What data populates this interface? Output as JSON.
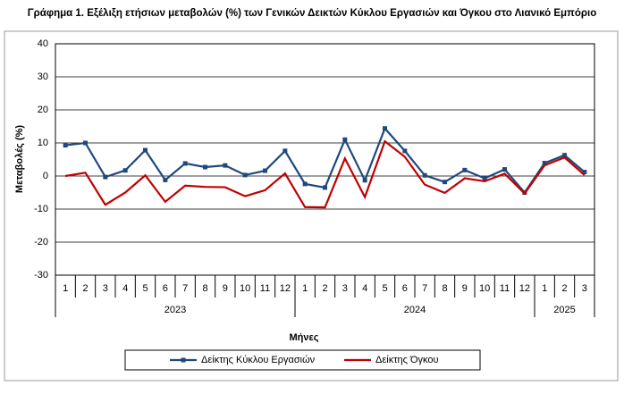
{
  "chart_data": {
    "type": "line",
    "title": "Γράφημα 1. Εξέλιξη ετήσιων μεταβολών (%) των Γενικών Δεικτών Κύκλου Εργασιών και Όγκου στο Λιανικό Εμπόριο",
    "y_label": "Μεταβολές  (%)",
    "x_label": "Μήνες",
    "category_groups": [
      {
        "label": "2023",
        "categories": [
          "1",
          "2",
          "3",
          "4",
          "5",
          "6",
          "7",
          "8",
          "9",
          "10",
          "11",
          "12"
        ]
      },
      {
        "label": "2024",
        "categories": [
          "1",
          "2",
          "3",
          "4",
          "5",
          "6",
          "7",
          "8",
          "9",
          "10",
          "11",
          "12"
        ]
      },
      {
        "label": "2025",
        "categories": [
          "1",
          "2",
          "3"
        ]
      }
    ],
    "series": [
      {
        "name": "Δείκτης Κύκλου Εργασιών",
        "color": "#1f497d",
        "marker": true,
        "values": [
          9.3,
          10,
          -0.3,
          1.7,
          7.8,
          -1.2,
          3.8,
          2.7,
          3.2,
          0.3,
          1.6,
          7.6,
          -2.4,
          -3.5,
          11,
          -1.3,
          14.4,
          7.6,
          0.2,
          -1.8,
          1.8,
          -0.7,
          2,
          -5,
          3.9,
          6.3,
          1.2
        ]
      },
      {
        "name": "Δείκτης Όγκου",
        "color": "#c00000",
        "marker": false,
        "values": [
          0,
          1,
          -8.7,
          -5,
          0.2,
          -7.8,
          -2.9,
          -3.3,
          -3.4,
          -6.1,
          -4.3,
          0.8,
          -9.4,
          -9.5,
          5.3,
          -6.4,
          10.5,
          5.8,
          -2.6,
          -5.1,
          -0.7,
          -1.6,
          0.7,
          -5.3,
          3.2,
          5.6,
          0.3
        ]
      }
    ],
    "ylim": [
      -30,
      40
    ],
    "yticks": [
      -30,
      -20,
      -10,
      0,
      10,
      20,
      30,
      40
    ],
    "grid": true
  }
}
